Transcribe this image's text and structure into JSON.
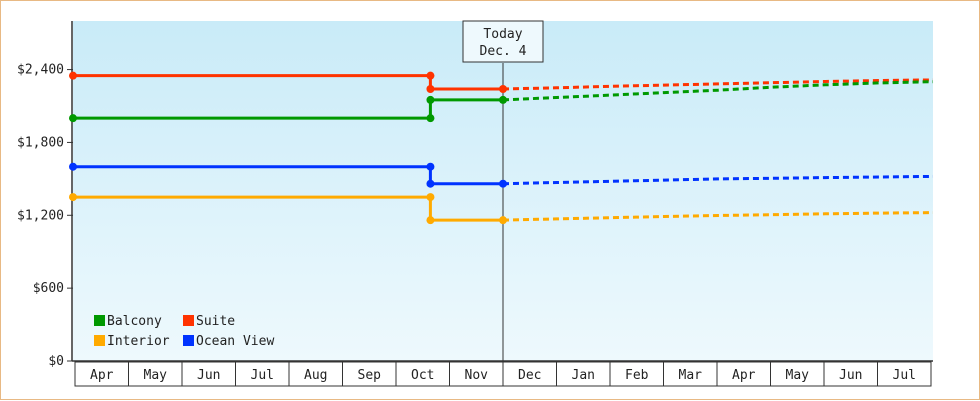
{
  "chart_data": {
    "type": "line",
    "title": "",
    "xlabel": "",
    "ylabel": "",
    "x_categories": [
      "Apr",
      "May",
      "Jun",
      "Jul",
      "Aug",
      "Sep",
      "Oct",
      "Nov",
      "Dec",
      "Jan",
      "Feb",
      "Mar",
      "Apr",
      "May",
      "Jun",
      "Jul"
    ],
    "ylim": [
      0,
      2800
    ],
    "y_ticks": [
      {
        "value": 0,
        "label": "$0"
      },
      {
        "value": 600,
        "label": "$600"
      },
      {
        "value": 1200,
        "label": "$1,200"
      },
      {
        "value": 1800,
        "label": "$1,800"
      },
      {
        "value": 2400,
        "label": "$2,400"
      }
    ],
    "today_marker": {
      "x": 8.0,
      "line1": "Today",
      "line2": "Dec. 4"
    },
    "legend": {
      "placement": "bottom-left"
    },
    "series": [
      {
        "name": "Suite",
        "color": "#ff3300",
        "history": [
          [
            0.0,
            2350
          ],
          [
            6.65,
            2350
          ],
          [
            6.65,
            2240
          ],
          [
            8.0,
            2240
          ]
        ],
        "forecast": [
          [
            8.0,
            2240
          ],
          [
            9.0,
            2250
          ],
          [
            10.0,
            2262
          ],
          [
            11.0,
            2272
          ],
          [
            12.0,
            2282
          ],
          [
            13.0,
            2292
          ],
          [
            14.0,
            2302
          ],
          [
            15.0,
            2310
          ],
          [
            16.0,
            2315
          ]
        ]
      },
      {
        "name": "Balcony",
        "color": "#009900",
        "history": [
          [
            0.0,
            2000
          ],
          [
            6.65,
            2000
          ],
          [
            6.65,
            2150
          ],
          [
            8.0,
            2150
          ]
        ],
        "forecast": [
          [
            8.0,
            2150
          ],
          [
            9.0,
            2170
          ],
          [
            10.0,
            2190
          ],
          [
            11.0,
            2210
          ],
          [
            12.0,
            2230
          ],
          [
            13.0,
            2255
          ],
          [
            14.0,
            2275
          ],
          [
            15.0,
            2290
          ],
          [
            16.0,
            2300
          ]
        ]
      },
      {
        "name": "Ocean View",
        "color": "#0033ff",
        "history": [
          [
            0.0,
            1600
          ],
          [
            6.65,
            1600
          ],
          [
            6.65,
            1460
          ],
          [
            8.0,
            1460
          ]
        ],
        "forecast": [
          [
            8.0,
            1460
          ],
          [
            9.0,
            1470
          ],
          [
            10.0,
            1480
          ],
          [
            11.0,
            1490
          ],
          [
            12.0,
            1500
          ],
          [
            13.0,
            1505
          ],
          [
            14.0,
            1510
          ],
          [
            15.0,
            1515
          ],
          [
            16.0,
            1520
          ]
        ]
      },
      {
        "name": "Interior",
        "color": "#ffaa00",
        "history": [
          [
            0.0,
            1350
          ],
          [
            6.65,
            1350
          ],
          [
            6.65,
            1160
          ],
          [
            8.0,
            1160
          ]
        ],
        "forecast": [
          [
            8.0,
            1160
          ],
          [
            9.0,
            1170
          ],
          [
            10.0,
            1180
          ],
          [
            11.0,
            1190
          ],
          [
            12.0,
            1198
          ],
          [
            13.0,
            1205
          ],
          [
            14.0,
            1212
          ],
          [
            15.0,
            1218
          ],
          [
            16.0,
            1222
          ]
        ]
      }
    ]
  }
}
